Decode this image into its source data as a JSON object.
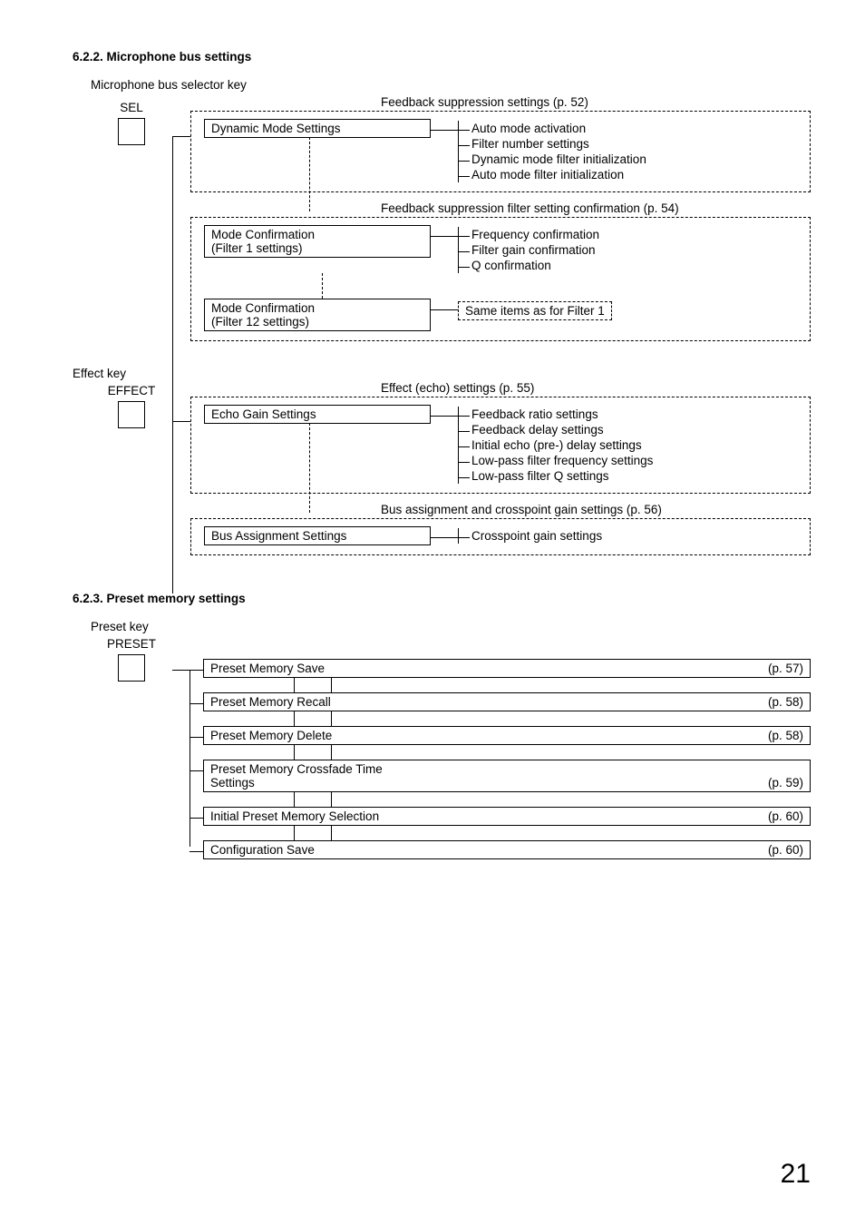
{
  "page_number": "21",
  "sec_622": {
    "heading": "6.2.2. Microphone bus settings",
    "caption": "Microphone bus selector key",
    "key_label": "SEL",
    "group_feedback": {
      "title": "Feedback suppression settings (p. 52)",
      "box": "Dynamic Mode Settings",
      "items": [
        "Auto mode activation",
        "Filter number settings",
        "Dynamic mode filter initialization",
        "Auto mode filter initialization"
      ]
    },
    "group_confirm": {
      "title": "Feedback suppression filter setting confirmation (p. 54)",
      "box1": "Mode Confirmation\n(Filter 1 settings)",
      "box1_items": [
        "Frequency confirmation",
        "Filter gain confirmation",
        "Q confirmation"
      ],
      "box2": "Mode Confirmation\n(Filter 12 settings)",
      "box2_note": "Same items as for Filter 1"
    },
    "effect_caption": "Effect key",
    "effect_label": "EFFECT",
    "group_effect": {
      "title": "Effect (echo) settings (p. 55)",
      "box": "Echo Gain Settings",
      "items": [
        "Feedback ratio settings",
        "Feedback delay settings",
        "Initial echo (pre-) delay settings",
        "Low-pass filter frequency settings",
        "Low-pass filter Q settings"
      ]
    },
    "group_bus": {
      "title": "Bus assignment and crosspoint gain settings (p. 56)",
      "box": "Bus Assignment Settings",
      "items": [
        "Crosspoint gain settings"
      ]
    }
  },
  "sec_623": {
    "heading": "6.2.3. Preset memory settings",
    "caption": "Preset key",
    "key_label": "PRESET",
    "rows": [
      {
        "label": "Preset Memory Save",
        "page": "(p. 57)"
      },
      {
        "label": "Preset Memory Recall",
        "page": "(p. 58)"
      },
      {
        "label": "Preset Memory Delete",
        "page": "(p. 58)"
      },
      {
        "label": "Preset Memory Crossfade Time Settings",
        "page": "(p. 59)"
      },
      {
        "label": "Initial Preset Memory Selection",
        "page": "(p. 60)"
      },
      {
        "label": "Configuration Save",
        "page": "(p. 60)"
      }
    ]
  }
}
